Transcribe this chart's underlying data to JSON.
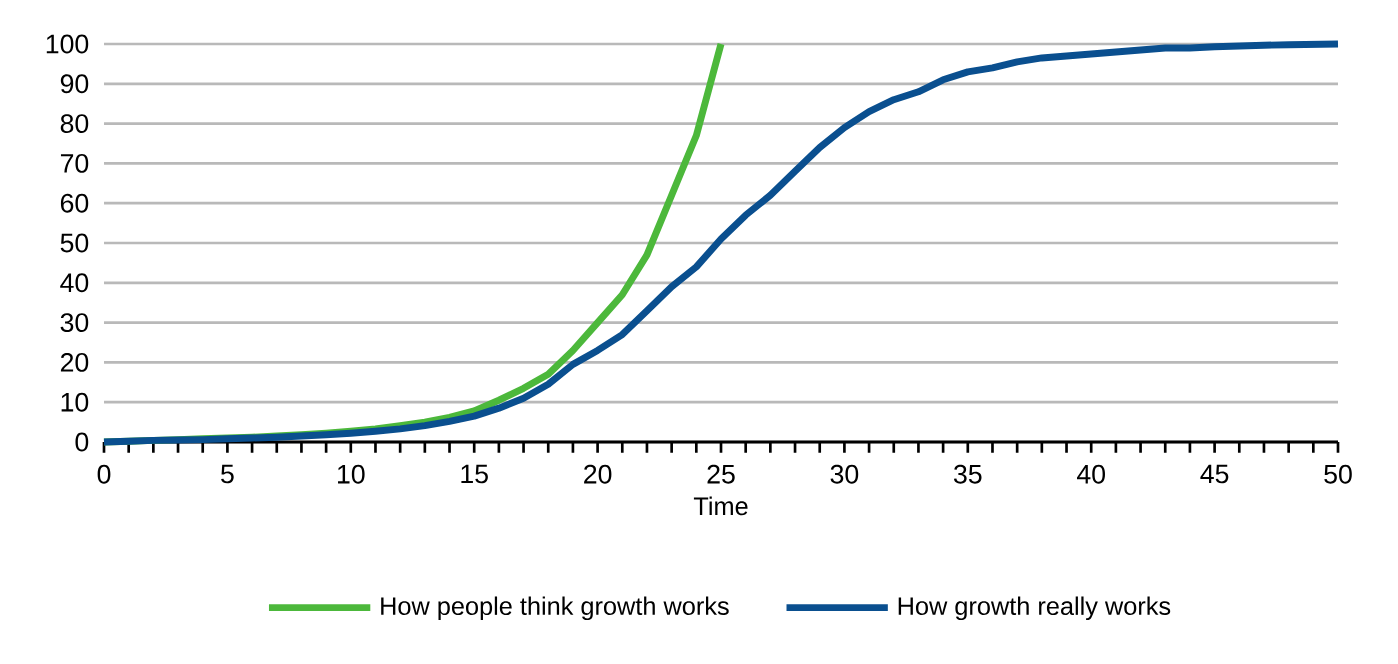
{
  "chart_data": {
    "type": "line",
    "xlabel": "Time",
    "x": [
      0,
      1,
      2,
      3,
      4,
      5,
      6,
      7,
      8,
      9,
      10,
      11,
      12,
      13,
      14,
      15,
      16,
      17,
      18,
      19,
      20,
      21,
      22,
      23,
      24,
      25,
      26,
      27,
      28,
      29,
      30,
      31,
      32,
      33,
      34,
      35,
      36,
      37,
      38,
      39,
      40,
      41,
      42,
      43,
      44,
      45,
      46,
      47,
      48,
      49,
      50
    ],
    "series": [
      {
        "name": "How people think growth works",
        "color": "#4cb83b",
        "x": [
          0,
          1,
          2,
          3,
          4,
          5,
          6,
          7,
          8,
          9,
          10,
          11,
          12,
          13,
          14,
          15,
          16,
          17,
          18,
          19,
          20,
          21,
          22,
          23,
          24,
          25
        ],
        "values": [
          0,
          0.2,
          0.4,
          0.6,
          0.8,
          1,
          1.2,
          1.5,
          1.8,
          2.2,
          2.7,
          3.3,
          4.1,
          5,
          6.2,
          7.8,
          10.5,
          13.5,
          17,
          23,
          30,
          37,
          47,
          62,
          77,
          100
        ]
      },
      {
        "name": "How growth really works",
        "color": "#0a4f8f",
        "values": [
          0,
          0.2,
          0.4,
          0.5,
          0.6,
          0.8,
          1,
          1.2,
          1.5,
          1.8,
          2.2,
          2.7,
          3.3,
          4.1,
          5.2,
          6.5,
          8.5,
          11,
          14.5,
          19.5,
          23,
          27,
          33,
          39,
          44,
          51,
          57,
          62,
          68,
          74,
          79,
          83,
          86,
          88,
          91,
          93,
          94,
          95.5,
          96.5,
          97,
          97.5,
          98,
          98.5,
          99,
          99,
          99.3,
          99.5,
          99.7,
          99.8,
          99.9,
          100
        ]
      }
    ],
    "xlim": [
      0,
      50
    ],
    "xticks": [
      0,
      {
        "value": 1,
        "label": null
      },
      {
        "value": 2,
        "label": null
      },
      {
        "value": 3,
        "label": null
      },
      {
        "value": 4,
        "label": null
      },
      5,
      {
        "value": 6,
        "label": null
      },
      {
        "value": 7,
        "label": null
      },
      {
        "value": 8,
        "label": null
      },
      {
        "value": 9,
        "label": null
      },
      10,
      {
        "value": 11,
        "label": null
      },
      {
        "value": 12,
        "label": null
      },
      {
        "value": 13,
        "label": null
      },
      {
        "value": 14,
        "label": null
      },
      15,
      {
        "value": 16,
        "label": null
      },
      {
        "value": 17,
        "label": null
      },
      {
        "value": 18,
        "label": null
      },
      {
        "value": 19,
        "label": null
      },
      20,
      {
        "value": 21,
        "label": null
      },
      {
        "value": 22,
        "label": null
      },
      {
        "value": 23,
        "label": null
      },
      {
        "value": 24,
        "label": null
      },
      25,
      {
        "value": 26,
        "label": null
      },
      {
        "value": 27,
        "label": null
      },
      {
        "value": 28,
        "label": null
      },
      {
        "value": 29,
        "label": null
      },
      30,
      {
        "value": 31,
        "label": null
      },
      {
        "value": 32,
        "label": null
      },
      {
        "value": 33,
        "label": null
      },
      {
        "value": 34,
        "label": null
      },
      35,
      {
        "value": 36,
        "label": null
      },
      {
        "value": 37,
        "label": null
      },
      {
        "value": 38,
        "label": null
      },
      {
        "value": 39,
        "label": null
      },
      40,
      {
        "value": 41,
        "label": null
      },
      {
        "value": 42,
        "label": null
      },
      {
        "value": 43,
        "label": null
      },
      {
        "value": 44,
        "label": null
      },
      45,
      {
        "value": 46,
        "label": null
      },
      {
        "value": 47,
        "label": null
      },
      {
        "value": 48,
        "label": null
      },
      {
        "value": 49,
        "label": null
      },
      50
    ],
    "ylim": [
      0,
      100
    ],
    "yticks": [
      0,
      10,
      20,
      30,
      40,
      50,
      60,
      70,
      80,
      90,
      100
    ],
    "grid": "y",
    "legend": "bottom",
    "marker": "none",
    "line_style": "solid"
  }
}
